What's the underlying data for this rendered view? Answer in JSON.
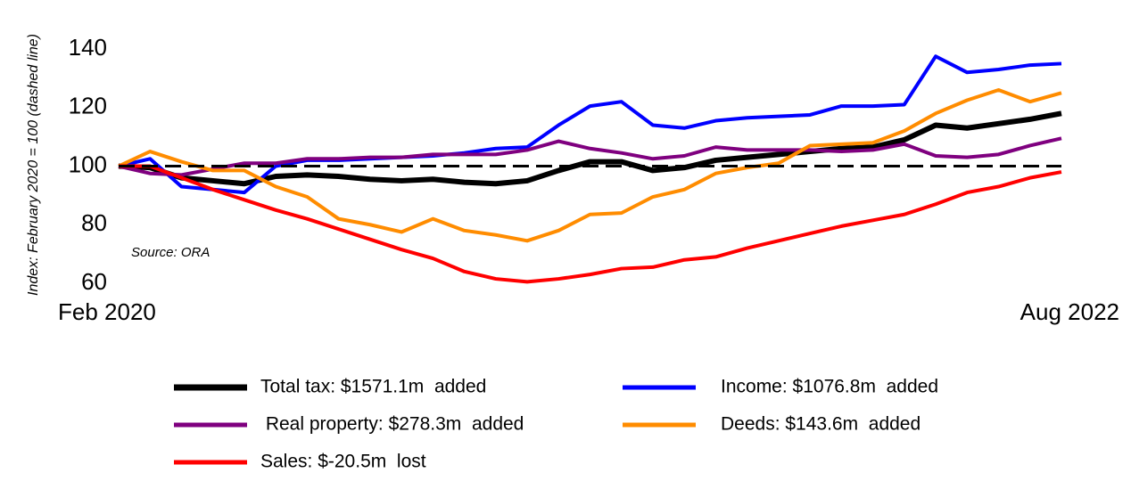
{
  "chart_data": {
    "type": "line",
    "y_label": "Index: February 2020 = 100 (dashed line)",
    "annotation": "Source: ORA",
    "categories": [
      "Feb 2020",
      null,
      null,
      null,
      null,
      null,
      null,
      null,
      null,
      null,
      null,
      null,
      null,
      null,
      null,
      null,
      null,
      null,
      null,
      null,
      null,
      null,
      null,
      null,
      null,
      null,
      null,
      null,
      null,
      null,
      "Aug 2022"
    ],
    "baseline": 100,
    "ylim": [
      60,
      145
    ],
    "yticks": [
      60,
      80,
      100,
      120,
      140
    ],
    "series": [
      {
        "name": "Total tax: $1571.1m  added",
        "color": "#000000",
        "values": [
          100,
          99.5,
          96,
          95,
          94,
          96.5,
          97,
          96.5,
          95.5,
          95,
          95.5,
          94.5,
          94,
          95,
          98.5,
          101.5,
          101.5,
          98.5,
          99.5,
          102,
          103,
          104,
          105,
          106,
          106.5,
          109,
          114,
          113,
          114.5,
          116,
          118
        ]
      },
      {
        "name": "Income: $1076.8m  added",
        "color": "#0000ff",
        "values": [
          100,
          102.5,
          93,
          92,
          91,
          100,
          102,
          102,
          102.5,
          103,
          103.5,
          104.5,
          106,
          106.5,
          114,
          120.5,
          122,
          114,
          113,
          115.5,
          116.5,
          117,
          117.5,
          120.5,
          120.5,
          121,
          137.5,
          132,
          133,
          134.5,
          135
        ]
      },
      {
        "name": " Real property: $278.3m  added",
        "color": "#7f007f",
        "values": [
          100,
          97.5,
          97,
          99,
          101,
          101,
          102.5,
          102.5,
          103,
          103,
          104,
          104,
          104,
          105.5,
          108.5,
          106,
          104.5,
          102.5,
          103.5,
          106.5,
          105.5,
          105.5,
          105.5,
          105,
          105.5,
          107.5,
          103.5,
          103,
          104,
          107,
          109.5
        ]
      },
      {
        "name": "Deeds: $143.6m  added",
        "color": "#ff8c00",
        "values": [
          100,
          105,
          101.5,
          98.5,
          98.5,
          93,
          89.5,
          82,
          80,
          77.5,
          82,
          78,
          76.5,
          74.5,
          78,
          83.5,
          84,
          89.5,
          92,
          97.5,
          99.5,
          101,
          107,
          107.5,
          108,
          112,
          118,
          122.5,
          126,
          122,
          125
        ]
      },
      {
        "name": "Sales: $-20.5m  lost",
        "color": "#ff0000",
        "values": [
          100,
          100,
          96,
          92,
          88.5,
          85,
          82,
          78.5,
          75,
          71.5,
          68.5,
          64,
          61.5,
          60.5,
          61.5,
          63,
          65,
          65.5,
          68,
          69,
          72,
          74.5,
          77,
          79.5,
          81.5,
          83.5,
          87,
          91,
          93,
          96,
          98
        ]
      }
    ]
  }
}
